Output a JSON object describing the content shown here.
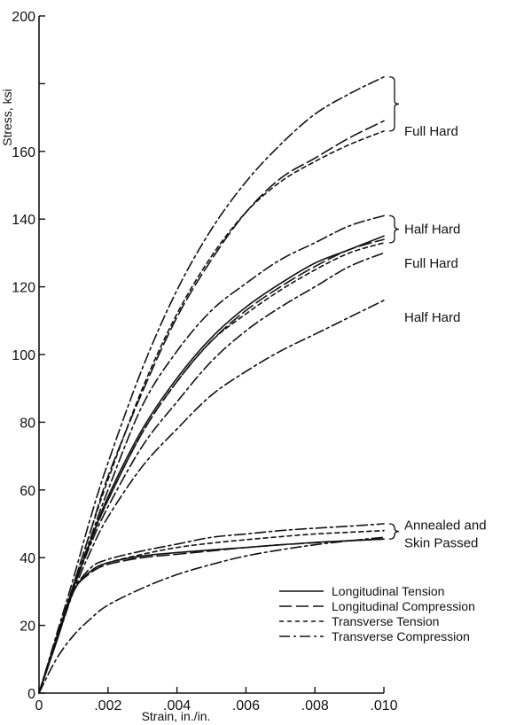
{
  "chart_data": {
    "type": "line",
    "title": "",
    "xlabel": "Strain, in./in.",
    "ylabel": "Stress, ksi",
    "xlim": [
      0,
      0.01
    ],
    "ylim": [
      0,
      200
    ],
    "x_ticks": [
      {
        "value": 0,
        "label": "0"
      },
      {
        "value": 0.002,
        "label": ".002"
      },
      {
        "value": 0.004,
        "label": ".004"
      },
      {
        "value": 0.006,
        "label": ".006"
      },
      {
        "value": 0.008,
        "label": ".008"
      },
      {
        "value": 0.01,
        "label": ".010"
      }
    ],
    "y_ticks": [
      {
        "value": 0,
        "label": "0"
      },
      {
        "value": 20,
        "label": "20"
      },
      {
        "value": 40,
        "label": "40"
      },
      {
        "value": 60,
        "label": "60"
      },
      {
        "value": 80,
        "label": "80"
      },
      {
        "value": 100,
        "label": "100"
      },
      {
        "value": 120,
        "label": "120"
      },
      {
        "value": 140,
        "label": "140"
      },
      {
        "value": 160,
        "label": "160"
      },
      {
        "value": 180,
        "label": ""
      },
      {
        "value": 200,
        "label": "200"
      }
    ],
    "grid": false,
    "legend_position": "bottom-right",
    "styles": [
      {
        "name": "Longitudinal Tension",
        "dash": "solid"
      },
      {
        "name": "Longitudinal Compression",
        "dash": "long-dash"
      },
      {
        "name": "Transverse Tension",
        "dash": "short-dash"
      },
      {
        "name": "Transverse Compression",
        "dash": "dash-dot"
      }
    ],
    "series": [
      {
        "style": "dash-dot",
        "x": [
          0,
          0.0005,
          0.001,
          0.0015,
          0.002,
          0.003,
          0.004,
          0.005,
          0.006,
          0.007,
          0.008,
          0.009,
          0.01
        ],
        "y": [
          0,
          17,
          34,
          52,
          68,
          96,
          119,
          137,
          151,
          162,
          171,
          177,
          182
        ]
      },
      {
        "style": "long-dash",
        "x": [
          0,
          0.0005,
          0.001,
          0.0015,
          0.002,
          0.003,
          0.004,
          0.005,
          0.006,
          0.007,
          0.008,
          0.009,
          0.01
        ],
        "y": [
          0,
          16,
          32,
          48,
          64,
          89,
          111,
          128,
          142,
          152,
          158,
          164,
          169
        ]
      },
      {
        "style": "short-dash",
        "x": [
          0,
          0.0005,
          0.001,
          0.0015,
          0.002,
          0.003,
          0.004,
          0.005,
          0.006,
          0.007,
          0.008,
          0.009,
          0.01
        ],
        "y": [
          0,
          16,
          32,
          48,
          63,
          90,
          112,
          129,
          142,
          151,
          157,
          162,
          166
        ]
      },
      {
        "style": "dash-dot",
        "x": [
          0,
          0.0005,
          0.001,
          0.0015,
          0.002,
          0.003,
          0.004,
          0.005,
          0.006,
          0.007,
          0.008,
          0.009,
          0.01
        ],
        "y": [
          0,
          16,
          31,
          46,
          60,
          85,
          101,
          113,
          121,
          128,
          133,
          138,
          141
        ]
      },
      {
        "style": "solid",
        "x": [
          0,
          0.0005,
          0.001,
          0.0015,
          0.002,
          0.003,
          0.004,
          0.005,
          0.006,
          0.007,
          0.008,
          0.009,
          0.01
        ],
        "y": [
          0,
          16,
          31,
          45,
          58,
          78,
          93,
          105,
          114,
          121,
          127,
          131,
          135
        ]
      },
      {
        "style": "long-dash",
        "x": [
          0,
          0.0005,
          0.001,
          0.0015,
          0.002,
          0.003,
          0.004,
          0.005,
          0.006,
          0.007,
          0.008,
          0.009,
          0.01
        ],
        "y": [
          0,
          16,
          31,
          45,
          57,
          77,
          92,
          104,
          113,
          120,
          126,
          131,
          134
        ]
      },
      {
        "style": "short-dash",
        "x": [
          0,
          0.0005,
          0.001,
          0.0015,
          0.002,
          0.003,
          0.004,
          0.005,
          0.006,
          0.007,
          0.008,
          0.009,
          0.01
        ],
        "y": [
          0,
          16,
          31,
          45,
          57,
          77,
          92,
          104,
          112,
          119,
          125,
          130,
          133
        ]
      },
      {
        "style": "dash-dot",
        "x": [
          0,
          0.0005,
          0.001,
          0.0015,
          0.002,
          0.003,
          0.004,
          0.005,
          0.006,
          0.007,
          0.008,
          0.009,
          0.01
        ],
        "y": [
          0,
          16,
          31,
          44,
          55,
          73,
          86,
          98,
          107,
          114,
          120,
          126,
          130
        ]
      },
      {
        "style": "dash-dot",
        "x": [
          0,
          0.0005,
          0.001,
          0.0015,
          0.002,
          0.003,
          0.004,
          0.005,
          0.006,
          0.007,
          0.008,
          0.009,
          0.01
        ],
        "y": [
          0,
          15,
          30,
          42,
          52,
          67,
          78,
          88,
          95,
          101,
          106,
          111,
          116
        ]
      },
      {
        "style": "dash-dot",
        "x": [
          0,
          0.0005,
          0.001,
          0.0015,
          0.002,
          0.003,
          0.004,
          0.005,
          0.006,
          0.007,
          0.008,
          0.009,
          0.01
        ],
        "y": [
          0,
          15,
          30,
          37,
          39.5,
          42,
          44,
          46,
          47,
          48,
          48.7,
          49.3,
          50
        ]
      },
      {
        "style": "short-dash",
        "x": [
          0,
          0.0005,
          0.001,
          0.0015,
          0.002,
          0.003,
          0.004,
          0.005,
          0.006,
          0.007,
          0.008,
          0.009,
          0.01
        ],
        "y": [
          0,
          15,
          30,
          36,
          38.5,
          41,
          43,
          44.3,
          45.3,
          46.2,
          47,
          47.5,
          48
        ]
      },
      {
        "style": "solid",
        "x": [
          0,
          0.0005,
          0.001,
          0.0015,
          0.002,
          0.003,
          0.004,
          0.005,
          0.006,
          0.007,
          0.008,
          0.009,
          0.01
        ],
        "y": [
          0,
          15,
          30,
          36,
          38.5,
          40.5,
          41.5,
          42.3,
          43,
          43.8,
          44.5,
          45,
          45.5
        ]
      },
      {
        "style": "long-dash",
        "x": [
          0,
          0.0005,
          0.001,
          0.0015,
          0.002,
          0.003,
          0.004,
          0.005,
          0.006,
          0.007,
          0.008,
          0.009,
          0.01
        ],
        "y": [
          0,
          15,
          30,
          35.5,
          38,
          40,
          41,
          42,
          43,
          43.8,
          44.4,
          45,
          45.5
        ]
      },
      {
        "style": "dash-dot",
        "x": [
          0,
          0.0005,
          0.001,
          0.0015,
          0.002,
          0.003,
          0.004,
          0.005,
          0.006,
          0.007,
          0.008,
          0.009,
          0.01
        ],
        "y": [
          0,
          10,
          17,
          22,
          26,
          31,
          35,
          38,
          40.5,
          42.3,
          43.8,
          45,
          46
        ]
      }
    ],
    "annotations": [
      {
        "lines": [
          "Full Hard"
        ],
        "y": 166,
        "bracket": [
          182,
          166
        ]
      },
      {
        "lines": [
          "Half Hard"
        ],
        "y": 137,
        "bracket": [
          141,
          133
        ]
      },
      {
        "lines": [
          "Full Hard"
        ],
        "y": 127
      },
      {
        "lines": [
          "Half Hard"
        ],
        "y": 111
      },
      {
        "lines": [
          "Annealed and",
          "Skin Passed"
        ],
        "y": 47,
        "bracket": [
          50,
          45.5
        ]
      }
    ]
  }
}
